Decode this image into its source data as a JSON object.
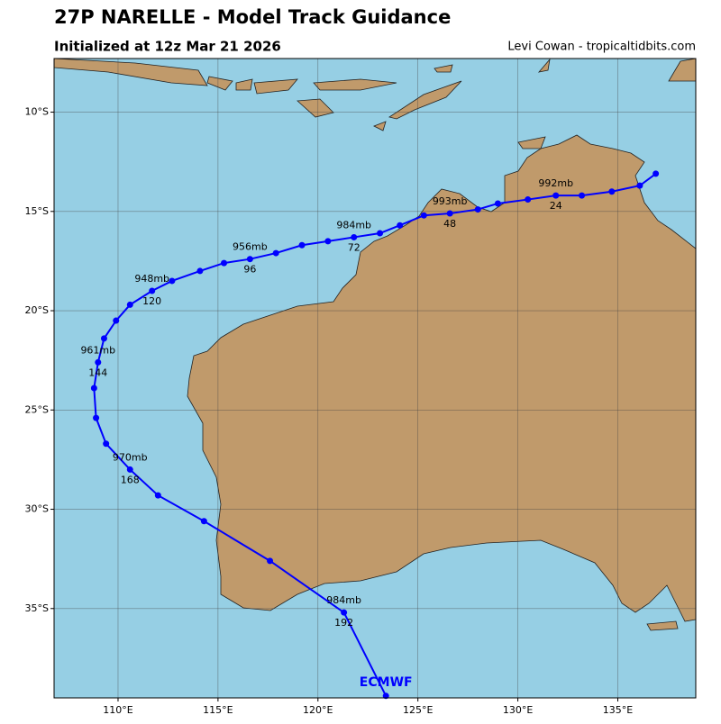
{
  "chart_data": {
    "type": "track",
    "title": "27P NARELLE - Model Track Guidance",
    "subtitle": "Initialized at 12z Mar 21 2026",
    "credit": "Levi Cowan - tropicaltidbits.com",
    "model_label": "ECMWF",
    "color": "#0000ff",
    "grid": true,
    "xlim": [
      106.8,
      138.9
    ],
    "ylim": [
      -39.5,
      -7.3
    ],
    "xticks": [
      {
        "value": 110,
        "label": "110°E"
      },
      {
        "value": 115,
        "label": "115°E"
      },
      {
        "value": 120,
        "label": "120°E"
      },
      {
        "value": 125,
        "label": "125°E"
      },
      {
        "value": 130,
        "label": "130°E"
      },
      {
        "value": 135,
        "label": "135°E"
      }
    ],
    "yticks": [
      {
        "value": -10,
        "label": "10°S"
      },
      {
        "value": -15,
        "label": "15°S"
      },
      {
        "value": -20,
        "label": "20°S"
      },
      {
        "value": -25,
        "label": "25°S"
      },
      {
        "value": -30,
        "label": "30°S"
      },
      {
        "value": -35,
        "label": "35°S"
      }
    ],
    "track": {
      "lon": [
        136.9,
        136.1,
        134.7,
        133.2,
        131.9,
        130.5,
        129.0,
        128.0,
        126.6,
        125.3,
        124.1,
        123.1,
        121.8,
        120.5,
        119.2,
        117.9,
        116.6,
        115.3,
        114.1,
        112.7,
        111.7,
        110.6,
        109.9,
        109.3,
        109.0,
        108.8,
        108.9,
        109.4,
        110.6,
        112.0,
        114.3,
        117.6,
        121.3,
        123.4
      ],
      "lat": [
        -13.1,
        -13.7,
        -14.0,
        -14.2,
        -14.2,
        -14.4,
        -14.6,
        -14.9,
        -15.1,
        -15.2,
        -15.7,
        -16.1,
        -16.3,
        -16.5,
        -16.7,
        -17.1,
        -17.4,
        -17.6,
        -18.0,
        -18.5,
        -19.0,
        -19.7,
        -20.5,
        -21.4,
        -22.6,
        -23.9,
        -25.4,
        -26.7,
        -28.0,
        -29.3,
        -30.6,
        -32.6,
        -35.2,
        -39.4
      ],
      "pressure_labels": [
        null,
        null,
        null,
        null,
        "992mb",
        null,
        null,
        null,
        "993mb",
        null,
        null,
        null,
        "984mb",
        null,
        null,
        null,
        "956mb",
        null,
        null,
        null,
        "948mb",
        null,
        null,
        null,
        "961mb",
        null,
        null,
        null,
        "970mb",
        null,
        null,
        null,
        "984mb",
        null
      ],
      "hour_labels": [
        null,
        null,
        null,
        null,
        24,
        null,
        null,
        null,
        48,
        null,
        null,
        null,
        72,
        null,
        null,
        null,
        96,
        null,
        null,
        null,
        120,
        null,
        null,
        null,
        144,
        null,
        null,
        null,
        168,
        null,
        null,
        null,
        192,
        null
      ]
    }
  }
}
